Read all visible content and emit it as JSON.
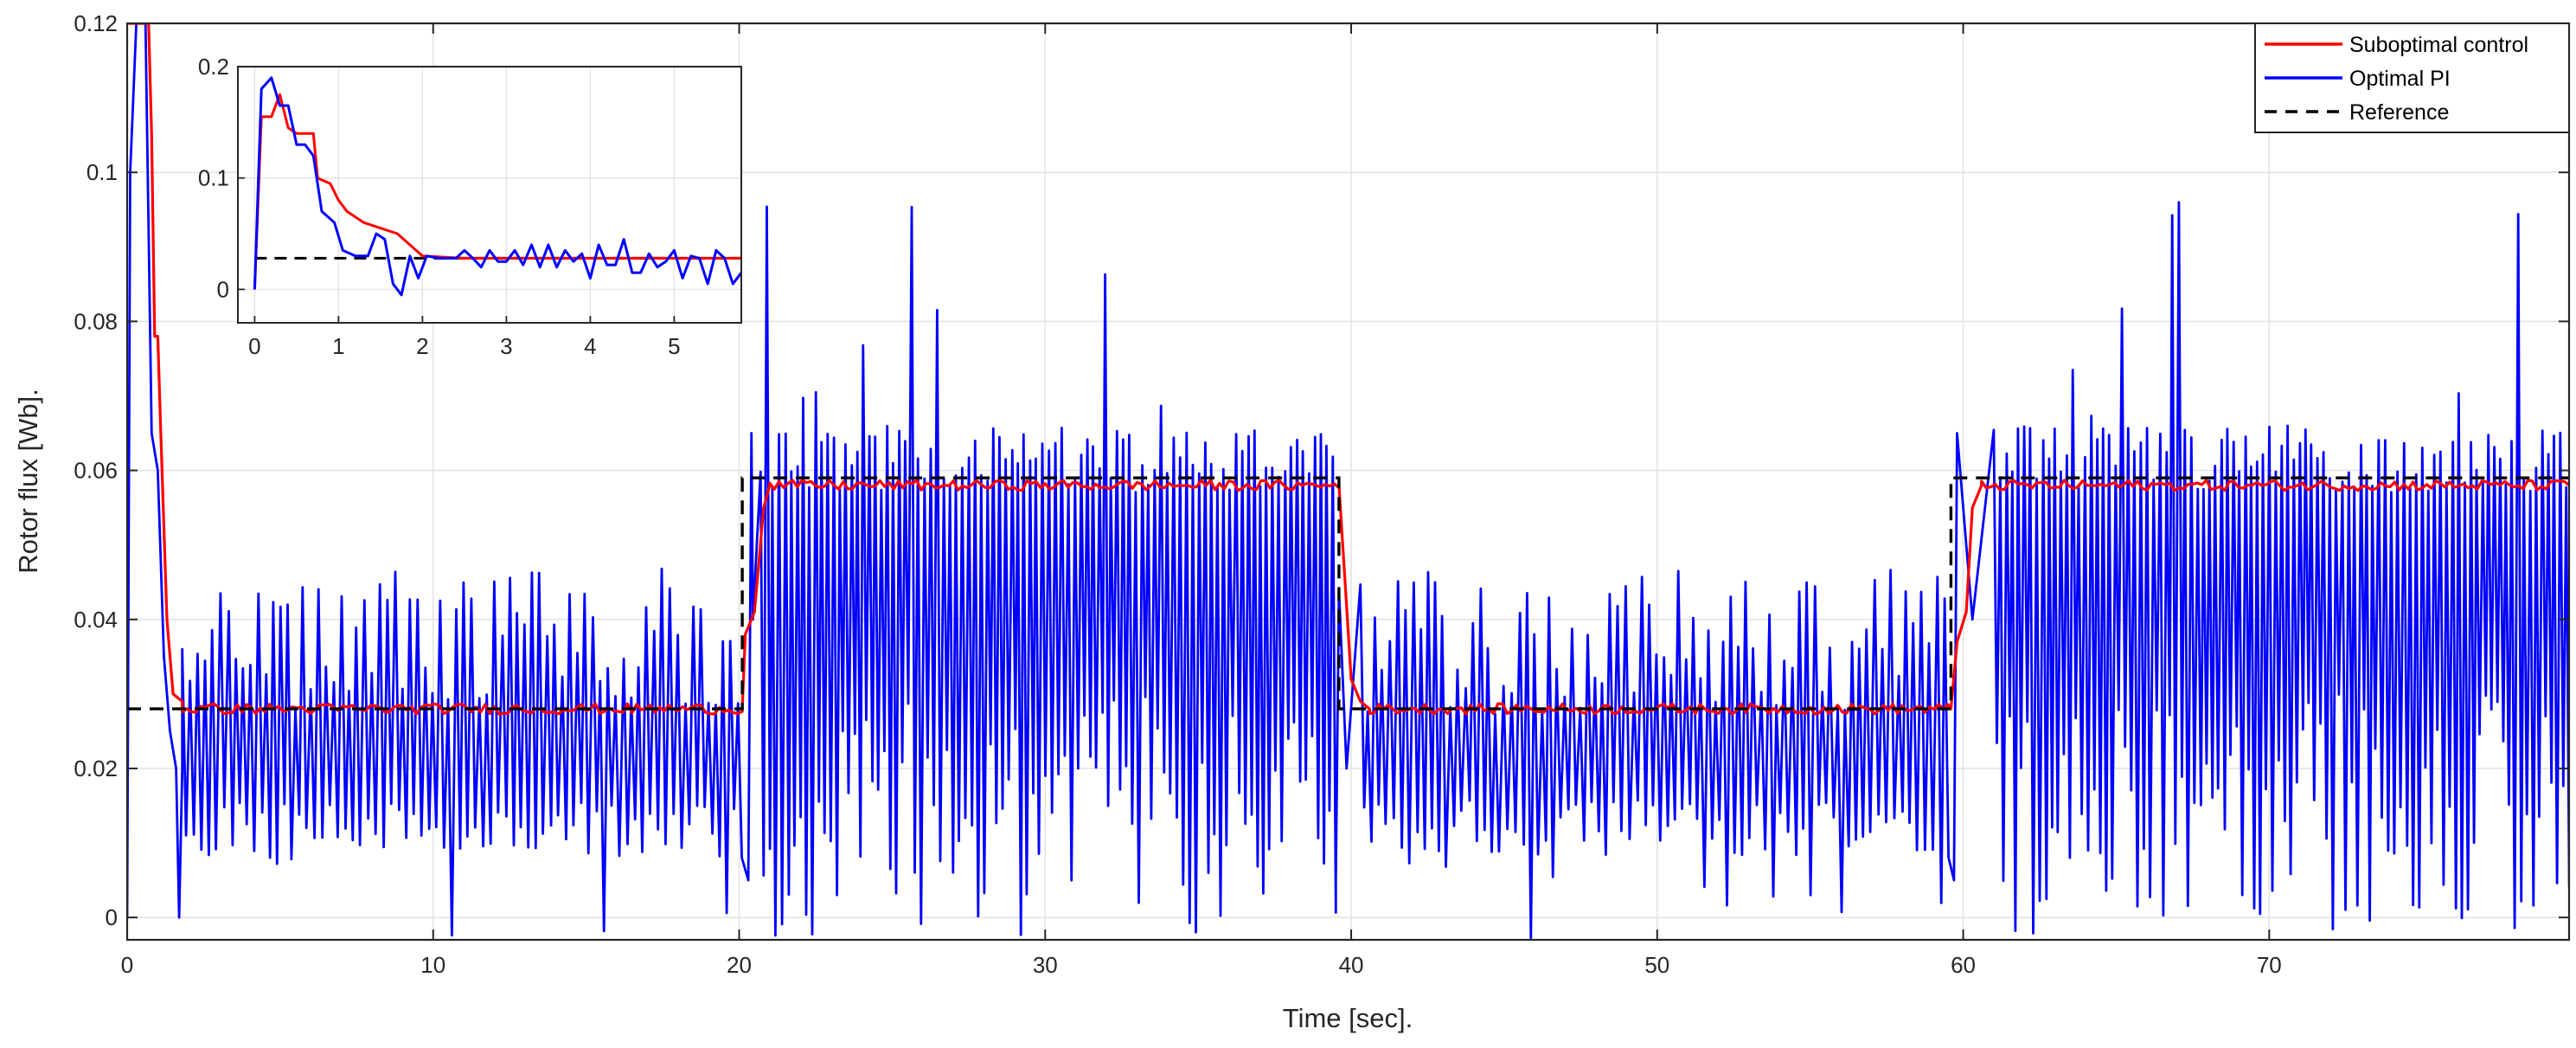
{
  "chart_data": {
    "type": "line",
    "title": "",
    "xlabel": "Time [sec].",
    "ylabel": "Rotor flux [Wb].",
    "xlim": [
      0,
      79.8
    ],
    "ylim": [
      -0.003,
      0.12
    ],
    "xticks": [
      0,
      10,
      20,
      30,
      40,
      50,
      60,
      70
    ],
    "yticks": [
      0,
      0.02,
      0.04,
      0.06,
      0.08,
      0.1,
      0.12
    ],
    "xtick_labels": [
      "0",
      "10",
      "20",
      "30",
      "40",
      "50",
      "60",
      "70"
    ],
    "ytick_labels": [
      "0",
      "0.02",
      "0.04",
      "0.06",
      "0.08",
      "0.1",
      "0.12"
    ],
    "grid": true,
    "legend_position": "top-right",
    "series": [
      {
        "name": "Suboptimal control",
        "color": "#ff0000",
        "style": "solid",
        "levels": [
          {
            "x_start": 1.8,
            "x_end": 20.1,
            "value": 0.028
          },
          {
            "x_start": 21.0,
            "x_end": 39.6,
            "value": 0.058
          },
          {
            "x_start": 40.6,
            "x_end": 59.6,
            "value": 0.028
          },
          {
            "x_start": 60.6,
            "x_end": 79.8,
            "value": 0.058
          }
        ],
        "points": [
          [
            0.0,
            0.12
          ],
          [
            0.5,
            0.12
          ],
          [
            0.7,
            0.12
          ],
          [
            0.8,
            0.105
          ],
          [
            0.9,
            0.078
          ],
          [
            1.0,
            0.078
          ],
          [
            1.1,
            0.065
          ],
          [
            1.3,
            0.04
          ],
          [
            1.5,
            0.03
          ],
          [
            1.8,
            0.029
          ],
          [
            20.1,
            0.028
          ],
          [
            20.2,
            0.038
          ],
          [
            20.5,
            0.041
          ],
          [
            20.8,
            0.055
          ],
          [
            21.0,
            0.058
          ],
          [
            39.6,
            0.058
          ],
          [
            39.8,
            0.045
          ],
          [
            40.0,
            0.032
          ],
          [
            40.3,
            0.029
          ],
          [
            40.6,
            0.028
          ],
          [
            59.6,
            0.028
          ],
          [
            59.8,
            0.037
          ],
          [
            60.1,
            0.041
          ],
          [
            60.3,
            0.055
          ],
          [
            60.6,
            0.058
          ]
        ]
      },
      {
        "name": "Optimal PI",
        "color": "#0000ff",
        "style": "solid",
        "segments": [
          {
            "x_start": 1.8,
            "x_end": 20.2,
            "period": 0.25,
            "low": [
              0.008,
              0.016
            ],
            "high": [
              0.027,
              0.045
            ],
            "low_extreme": -0.003,
            "high_extreme": 0.047
          },
          {
            "x_start": 20.7,
            "x_end": 39.4,
            "period": 0.2,
            "low": [
              0.0,
              0.03
            ],
            "high": [
              0.057,
              0.066
            ],
            "low_extreme": -0.003,
            "high_extreme": 0.096
          },
          {
            "x_start": 40.3,
            "x_end": 59.6,
            "period": 0.25,
            "low": [
              0.008,
              0.016
            ],
            "high": [
              0.027,
              0.045
            ],
            "low_extreme": -0.003,
            "high_extreme": 0.047
          },
          {
            "x_start": 61.0,
            "x_end": 79.8,
            "period": 0.2,
            "low": [
              0.0,
              0.03
            ],
            "high": [
              0.057,
              0.066
            ],
            "low_extreme": -0.003,
            "high_extreme": 0.096
          }
        ],
        "points": [
          [
            0.0,
            0.0
          ],
          [
            0.1,
            0.1
          ],
          [
            0.3,
            0.12
          ],
          [
            0.6,
            0.12
          ],
          [
            0.8,
            0.065
          ],
          [
            1.0,
            0.06
          ],
          [
            1.2,
            0.035
          ],
          [
            1.4,
            0.025
          ],
          [
            1.6,
            0.02
          ],
          [
            1.7,
            0.0
          ],
          [
            1.8,
            0.02
          ]
        ]
      },
      {
        "name": "Reference",
        "color": "#000000",
        "style": "dashed",
        "points": [
          [
            0.0,
            0.028
          ],
          [
            20.1,
            0.028
          ],
          [
            20.1,
            0.059
          ],
          [
            39.6,
            0.059
          ],
          [
            39.6,
            0.028
          ],
          [
            59.6,
            0.028
          ],
          [
            59.6,
            0.059
          ],
          [
            79.8,
            0.059
          ]
        ]
      }
    ],
    "inset": {
      "xlim": [
        -0.2,
        5.8
      ],
      "ylim": [
        -0.03,
        0.2
      ],
      "xticks": [
        0,
        1,
        2,
        3,
        4,
        5
      ],
      "yticks": [
        0,
        0.1,
        0.2
      ],
      "xtick_labels": [
        "0",
        "1",
        "2",
        "3",
        "4",
        "5"
      ],
      "ytick_labels": [
        "0",
        "0.1",
        "0.2"
      ],
      "series": [
        {
          "name": "Suboptimal control",
          "color": "#ff0000",
          "points": [
            [
              0.0,
              0.0
            ],
            [
              0.08,
              0.155
            ],
            [
              0.2,
              0.155
            ],
            [
              0.3,
              0.175
            ],
            [
              0.4,
              0.145
            ],
            [
              0.5,
              0.14
            ],
            [
              0.55,
              0.14
            ],
            [
              0.7,
              0.14
            ],
            [
              0.75,
              0.1
            ],
            [
              0.9,
              0.095
            ],
            [
              1.0,
              0.08
            ],
            [
              1.1,
              0.07
            ],
            [
              1.3,
              0.06
            ],
            [
              1.5,
              0.055
            ],
            [
              1.7,
              0.05
            ],
            [
              2.0,
              0.03
            ],
            [
              2.5,
              0.028
            ],
            [
              3.0,
              0.028
            ],
            [
              4.0,
              0.028
            ],
            [
              5.0,
              0.028
            ],
            [
              5.8,
              0.028
            ]
          ]
        },
        {
          "name": "Optimal PI",
          "color": "#0000ff",
          "points": [
            [
              0.0,
              0.0
            ],
            [
              0.08,
              0.18
            ],
            [
              0.2,
              0.19
            ],
            [
              0.3,
              0.165
            ],
            [
              0.4,
              0.165
            ],
            [
              0.5,
              0.13
            ],
            [
              0.6,
              0.13
            ],
            [
              0.7,
              0.12
            ],
            [
              0.8,
              0.07
            ],
            [
              0.95,
              0.06
            ],
            [
              1.05,
              0.035
            ],
            [
              1.2,
              0.03
            ],
            [
              1.35,
              0.03
            ],
            [
              1.45,
              0.05
            ],
            [
              1.55,
              0.045
            ],
            [
              1.65,
              0.005
            ],
            [
              1.75,
              -0.005
            ],
            [
              1.85,
              0.03
            ],
            [
              1.95,
              0.01
            ],
            [
              2.05,
              0.03
            ],
            [
              2.2,
              0.028
            ],
            [
              2.4,
              0.028
            ],
            [
              2.5,
              0.035
            ],
            [
              2.6,
              0.028
            ],
            [
              2.7,
              0.02
            ],
            [
              2.8,
              0.035
            ],
            [
              2.9,
              0.025
            ],
            [
              3.0,
              0.025
            ],
            [
              3.1,
              0.035
            ],
            [
              3.2,
              0.022
            ],
            [
              3.3,
              0.04
            ],
            [
              3.4,
              0.02
            ],
            [
              3.5,
              0.04
            ],
            [
              3.6,
              0.02
            ],
            [
              3.7,
              0.035
            ],
            [
              3.8,
              0.025
            ],
            [
              3.9,
              0.032
            ],
            [
              4.0,
              0.01
            ],
            [
              4.1,
              0.04
            ],
            [
              4.2,
              0.022
            ],
            [
              4.3,
              0.022
            ],
            [
              4.4,
              0.045
            ],
            [
              4.5,
              0.015
            ],
            [
              4.6,
              0.015
            ],
            [
              4.7,
              0.032
            ],
            [
              4.8,
              0.02
            ],
            [
              4.9,
              0.025
            ],
            [
              5.0,
              0.035
            ],
            [
              5.1,
              0.01
            ],
            [
              5.2,
              0.03
            ],
            [
              5.3,
              0.028
            ],
            [
              5.4,
              0.005
            ],
            [
              5.5,
              0.035
            ],
            [
              5.6,
              0.028
            ],
            [
              5.7,
              0.005
            ],
            [
              5.8,
              0.015
            ]
          ]
        },
        {
          "name": "Reference",
          "color": "#000000",
          "style": "dashed",
          "points": [
            [
              0.0,
              0.028
            ],
            [
              5.8,
              0.028
            ]
          ]
        }
      ]
    }
  }
}
